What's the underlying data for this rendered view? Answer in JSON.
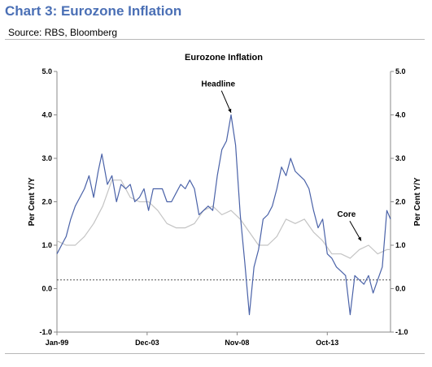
{
  "header": {
    "title": "Chart 3: Eurozone Inflation",
    "source": "Source: RBS, Bloomberg"
  },
  "colors": {
    "headline": "#4a62a8",
    "core": "#c4c4c4",
    "reference_line": "#555555"
  },
  "chart_data": {
    "type": "line",
    "title": "Eurozone Inflation",
    "ylabel": "Per Cent Y/Y",
    "ylabel_right": "Per Cent Y/Y",
    "ylim": [
      -1.0,
      5.0
    ],
    "yticks": [
      "5.0",
      "4.0",
      "3.0",
      "2.0",
      "1.0",
      "0.0",
      "-1.0"
    ],
    "xlim": [
      1999.0,
      2017.2
    ],
    "xticks": [
      {
        "label": "Jan-99",
        "x": 1999.0
      },
      {
        "label": "Dec-03",
        "x": 2003.92
      },
      {
        "label": "Nov-08",
        "x": 2008.83
      },
      {
        "label": "Oct-13",
        "x": 2013.75
      }
    ],
    "reference_line": {
      "y": 0.2,
      "style": "dotted"
    },
    "annotations": [
      {
        "text": "Headline",
        "x": 2007.8,
        "y": 4.65,
        "arrow_to": [
          2008.5,
          4.05
        ]
      },
      {
        "text": "Core",
        "x": 2014.8,
        "y": 1.65,
        "arrow_to": [
          2015.6,
          1.1
        ]
      }
    ],
    "grid": false,
    "legend": "none",
    "series": [
      {
        "name": "Headline",
        "x": [
          1999.0,
          1999.25,
          1999.5,
          1999.75,
          2000.0,
          2000.25,
          2000.5,
          2000.75,
          2001.0,
          2001.25,
          2001.45,
          2001.75,
          2002.0,
          2002.25,
          2002.5,
          2002.75,
          2003.0,
          2003.25,
          2003.5,
          2003.75,
          2004.0,
          2004.25,
          2004.5,
          2004.75,
          2005.0,
          2005.25,
          2005.5,
          2005.75,
          2006.0,
          2006.25,
          2006.5,
          2006.75,
          2007.0,
          2007.25,
          2007.5,
          2007.75,
          2008.0,
          2008.25,
          2008.5,
          2008.75,
          2009.0,
          2009.25,
          2009.5,
          2009.75,
          2010.0,
          2010.25,
          2010.5,
          2010.75,
          2011.0,
          2011.25,
          2011.5,
          2011.75,
          2012.0,
          2012.25,
          2012.5,
          2012.75,
          2013.0,
          2013.25,
          2013.5,
          2013.75,
          2014.0,
          2014.25,
          2014.5,
          2014.75,
          2015.0,
          2015.25,
          2015.5,
          2015.75,
          2016.0,
          2016.25,
          2016.5,
          2016.75,
          2017.0,
          2017.2
        ],
        "values": [
          0.8,
          1.0,
          1.2,
          1.6,
          1.9,
          2.1,
          2.3,
          2.6,
          2.1,
          2.7,
          3.1,
          2.4,
          2.6,
          2.0,
          2.4,
          2.3,
          2.4,
          2.0,
          2.1,
          2.3,
          1.8,
          2.3,
          2.3,
          2.3,
          2.0,
          2.0,
          2.2,
          2.4,
          2.3,
          2.5,
          2.3,
          1.7,
          1.8,
          1.9,
          1.8,
          2.6,
          3.2,
          3.4,
          4.0,
          3.3,
          1.7,
          0.6,
          -0.6,
          0.5,
          0.9,
          1.6,
          1.7,
          1.9,
          2.3,
          2.8,
          2.6,
          3.0,
          2.7,
          2.6,
          2.5,
          2.3,
          1.8,
          1.4,
          1.6,
          0.8,
          0.7,
          0.5,
          0.4,
          0.3,
          -0.6,
          0.3,
          0.2,
          0.1,
          0.3,
          -0.1,
          0.2,
          0.5,
          1.8,
          1.6
        ]
      },
      {
        "name": "Core",
        "x": [
          1999.0,
          1999.5,
          2000.0,
          2000.5,
          2001.0,
          2001.5,
          2002.0,
          2002.5,
          2003.0,
          2003.5,
          2004.0,
          2004.5,
          2005.0,
          2005.5,
          2006.0,
          2006.5,
          2007.0,
          2007.5,
          2008.0,
          2008.5,
          2009.0,
          2009.5,
          2010.0,
          2010.5,
          2011.0,
          2011.5,
          2012.0,
          2012.5,
          2013.0,
          2013.5,
          2014.0,
          2014.5,
          2015.0,
          2015.5,
          2016.0,
          2016.5,
          2017.0,
          2017.2
        ],
        "values": [
          1.1,
          1.0,
          1.0,
          1.2,
          1.5,
          1.9,
          2.5,
          2.5,
          2.1,
          2.0,
          2.0,
          1.8,
          1.5,
          1.4,
          1.4,
          1.5,
          1.8,
          1.9,
          1.7,
          1.8,
          1.6,
          1.3,
          1.0,
          1.0,
          1.2,
          1.6,
          1.5,
          1.6,
          1.3,
          1.1,
          0.8,
          0.8,
          0.7,
          0.9,
          1.0,
          0.8,
          0.9,
          0.9
        ]
      }
    ]
  }
}
